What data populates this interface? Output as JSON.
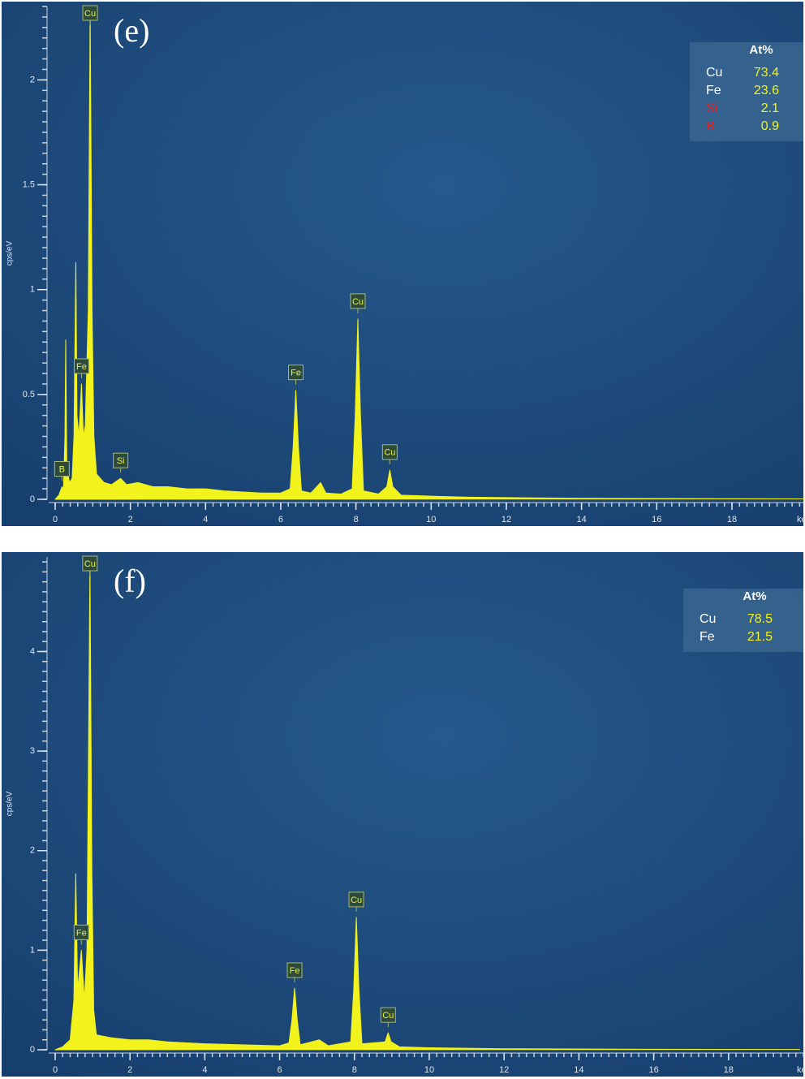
{
  "chart_data": [
    {
      "type": "area",
      "panel_label": "(e)",
      "y_label": "cps/eV",
      "x_label": "keV",
      "color": "#f2f21c",
      "x": [
        0,
        0.1,
        0.18,
        0.22,
        0.26,
        0.28,
        0.31,
        0.38,
        0.45,
        0.5,
        0.55,
        0.58,
        0.63,
        0.7,
        0.75,
        0.8,
        0.88,
        0.93,
        0.98,
        1.03,
        1.1,
        1.3,
        1.5,
        1.74,
        1.9,
        2.2,
        2.6,
        3,
        3.5,
        4,
        4.5,
        5,
        5.5,
        6,
        6.25,
        6.33,
        6.4,
        6.47,
        6.55,
        6.8,
        7.06,
        7.2,
        7.6,
        7.9,
        7.98,
        8.05,
        8.12,
        8.2,
        8.6,
        8.82,
        8.9,
        8.98,
        9.2,
        10,
        11,
        12,
        14,
        16,
        18,
        19.9
      ],
      "values": [
        0,
        0.02,
        0.06,
        0.05,
        0.3,
        0.76,
        0.15,
        0.08,
        0.1,
        0.3,
        1.13,
        0.4,
        0.3,
        0.55,
        0.3,
        0.35,
        0.9,
        2.35,
        0.9,
        0.3,
        0.12,
        0.08,
        0.07,
        0.1,
        0.07,
        0.08,
        0.06,
        0.06,
        0.05,
        0.05,
        0.04,
        0.035,
        0.03,
        0.03,
        0.05,
        0.25,
        0.52,
        0.25,
        0.04,
        0.03,
        0.08,
        0.03,
        0.025,
        0.05,
        0.4,
        0.86,
        0.4,
        0.04,
        0.025,
        0.06,
        0.14,
        0.06,
        0.02,
        0.015,
        0.01,
        0.008,
        0.005,
        0.004,
        0.003,
        0.002
      ],
      "xlim": [
        0,
        19.9
      ],
      "ylim": [
        0,
        2.35
      ],
      "xticks": [
        0,
        2,
        4,
        6,
        8,
        10,
        12,
        14,
        16,
        18
      ],
      "yticks": [
        0,
        0.5,
        1,
        1.5,
        2
      ],
      "peak_labels": [
        {
          "label": "Cu",
          "x": 0.93
        },
        {
          "label": "Fe",
          "x": 0.7
        },
        {
          "label": "B",
          "x": 0.18
        },
        {
          "label": "Si",
          "x": 1.74
        },
        {
          "label": "Fe",
          "x": 6.4
        },
        {
          "label": "Cu",
          "x": 8.05
        },
        {
          "label": "Cu",
          "x": 8.9
        }
      ],
      "legend": {
        "header": "At%",
        "rows": [
          {
            "element": "Cu",
            "value": 73.4,
            "element_color": "#ffffff"
          },
          {
            "element": "Fe",
            "value": 23.6,
            "element_color": "#ffffff"
          },
          {
            "element": "Si",
            "value": 2.1,
            "element_color": "#e02020"
          },
          {
            "element": "B",
            "value": 0.9,
            "element_color": "#e02020"
          }
        ]
      }
    },
    {
      "type": "area",
      "panel_label": "(f)",
      "y_label": "cps/eV",
      "x_label": "keV",
      "color": "#f2f21c",
      "x": [
        0,
        0.2,
        0.4,
        0.5,
        0.55,
        0.6,
        0.7,
        0.78,
        0.85,
        0.93,
        0.98,
        1.03,
        1.1,
        1.5,
        2,
        2.5,
        3,
        4,
        5,
        6,
        6.25,
        6.33,
        6.4,
        6.47,
        6.55,
        7.06,
        7.3,
        7.9,
        7.98,
        8.05,
        8.12,
        8.2,
        8.82,
        8.9,
        8.98,
        9.2,
        10,
        12,
        14,
        16,
        18,
        19.9
      ],
      "values": [
        0,
        0.03,
        0.1,
        0.5,
        1.77,
        0.6,
        1.0,
        0.5,
        1.0,
        4.9,
        1.8,
        0.4,
        0.15,
        0.12,
        0.1,
        0.1,
        0.08,
        0.06,
        0.05,
        0.04,
        0.07,
        0.3,
        0.62,
        0.3,
        0.05,
        0.1,
        0.04,
        0.08,
        0.6,
        1.33,
        0.6,
        0.06,
        0.08,
        0.17,
        0.08,
        0.03,
        0.02,
        0.01,
        0.008,
        0.005,
        0.004,
        0.003
      ],
      "xlim": [
        0,
        20
      ],
      "ylim": [
        0,
        4.95
      ],
      "xticks": [
        0,
        2,
        4,
        6,
        8,
        10,
        12,
        14,
        16,
        18
      ],
      "yticks": [
        0,
        1,
        2,
        3,
        4
      ],
      "peak_labels": [
        {
          "label": "Cu",
          "x": 0.93
        },
        {
          "label": "Fe",
          "x": 0.7
        },
        {
          "label": "Fe",
          "x": 6.4
        },
        {
          "label": "Cu",
          "x": 8.05
        },
        {
          "label": "Cu",
          "x": 8.9
        }
      ],
      "legend": {
        "header": "At%",
        "rows": [
          {
            "element": "Cu",
            "value": 78.5,
            "element_color": "#ffffff"
          },
          {
            "element": "Fe",
            "value": 21.5,
            "element_color": "#ffffff"
          }
        ]
      }
    }
  ]
}
